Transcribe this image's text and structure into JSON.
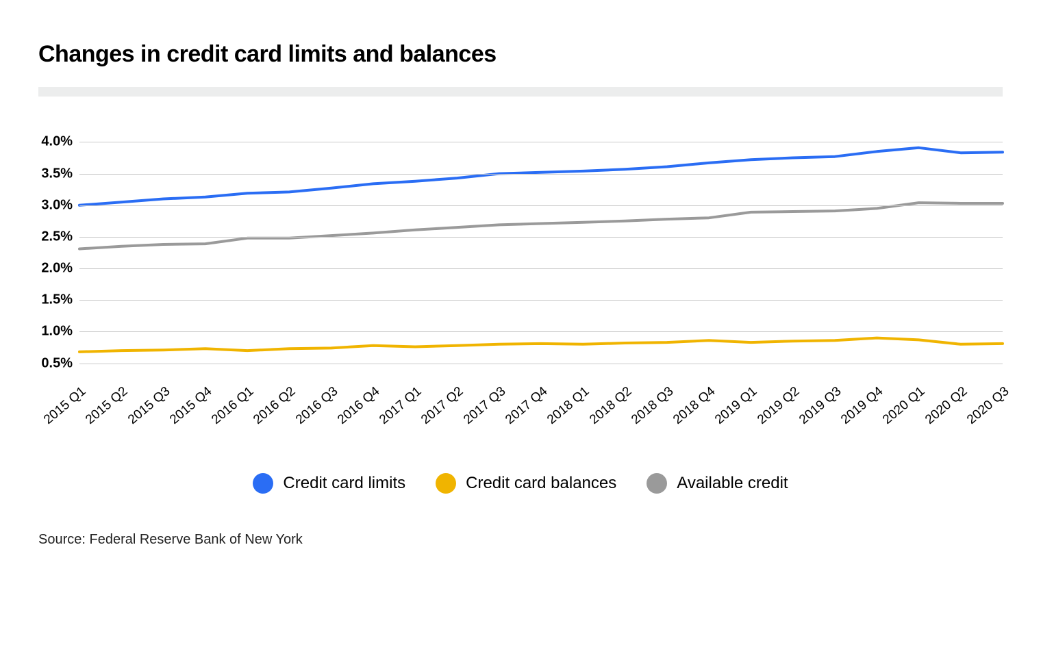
{
  "title": "Changes in credit card limits and balances",
  "source": "Source: Federal Reserve Bank of New York",
  "chart": {
    "type": "line",
    "background_color": "#ffffff",
    "grid_color": "#c9c9c9",
    "title_fontsize": 34,
    "label_fontsize": 20,
    "x_labels": [
      "2015 Q1",
      "2015 Q2",
      "2015 Q3",
      "2015 Q4",
      "2016 Q1",
      "2016 Q2",
      "2016 Q3",
      "2016 Q4",
      "2017 Q1",
      "2017 Q2",
      "2017 Q3",
      "2017 Q4",
      "2018 Q1",
      "2018 Q2",
      "2018 Q3",
      "2018 Q4",
      "2019 Q1",
      "2019 Q2",
      "2019 Q3",
      "2019 Q4",
      "2020 Q1",
      "2020 Q2",
      "2020 Q3"
    ],
    "x_label_rotation_deg": -40,
    "y": {
      "min": 0.3,
      "max": 4.2,
      "ticks": [
        0.5,
        1.0,
        1.5,
        2.0,
        2.5,
        3.0,
        3.5,
        4.0
      ],
      "tick_labels": [
        "0.5%",
        "1.0%",
        "1.5%",
        "2.0%",
        "2.5%",
        "3.0%",
        "3.5%",
        "4.0%"
      ]
    },
    "line_width": 4,
    "series": [
      {
        "name": "Credit card limits",
        "color": "#2a6df4",
        "values": [
          3.0,
          3.05,
          3.1,
          3.13,
          3.19,
          3.21,
          3.27,
          3.34,
          3.38,
          3.43,
          3.5,
          3.52,
          3.54,
          3.57,
          3.61,
          3.67,
          3.72,
          3.75,
          3.77,
          3.85,
          3.91,
          3.83,
          3.84
        ]
      },
      {
        "name": "Credit card balances",
        "color": "#f0b400",
        "values": [
          0.68,
          0.7,
          0.71,
          0.73,
          0.7,
          0.73,
          0.74,
          0.78,
          0.76,
          0.78,
          0.8,
          0.81,
          0.8,
          0.82,
          0.83,
          0.86,
          0.83,
          0.85,
          0.86,
          0.9,
          0.87,
          0.8,
          0.81
        ]
      },
      {
        "name": "Available credit",
        "color": "#9a9a9a",
        "values": [
          2.31,
          2.35,
          2.38,
          2.39,
          2.48,
          2.48,
          2.52,
          2.56,
          2.61,
          2.65,
          2.69,
          2.71,
          2.73,
          2.75,
          2.78,
          2.8,
          2.89,
          2.9,
          2.91,
          2.95,
          3.04,
          3.03,
          3.03
        ]
      }
    ],
    "legend": [
      {
        "label": "Credit card limits",
        "color": "#2a6df4"
      },
      {
        "label": "Credit card balances",
        "color": "#f0b400"
      },
      {
        "label": "Available credit",
        "color": "#9a9a9a"
      }
    ]
  }
}
